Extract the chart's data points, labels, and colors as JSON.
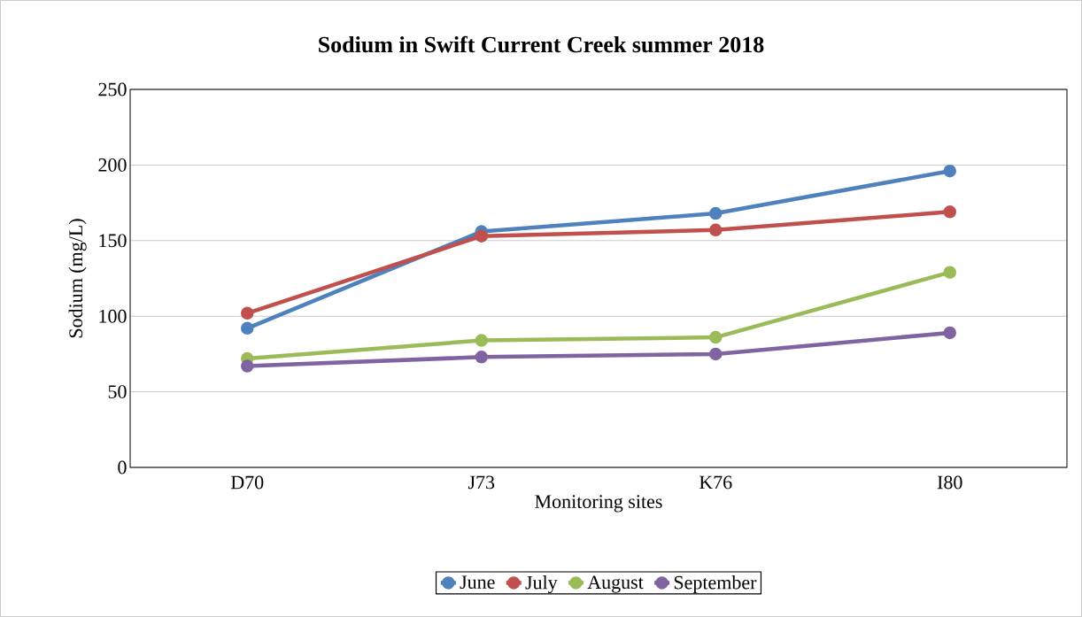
{
  "chart_data": {
    "type": "line",
    "title": "Sodium in Swift Current Creek summer 2018",
    "xlabel": "Monitoring sites",
    "ylabel": "Sodium (mg/L)",
    "categories": [
      "D70",
      "J73",
      "K76",
      "I80"
    ],
    "series": [
      {
        "name": "June",
        "color": "#4f81bd",
        "values": [
          92,
          156,
          168,
          196
        ]
      },
      {
        "name": "July",
        "color": "#c0504d",
        "values": [
          102,
          153,
          157,
          169
        ]
      },
      {
        "name": "August",
        "color": "#9bbb59",
        "values": [
          72,
          84,
          86,
          129
        ]
      },
      {
        "name": "September",
        "color": "#8064a2",
        "values": [
          67,
          73,
          75,
          89
        ]
      }
    ],
    "ylim": [
      0,
      250
    ],
    "yticks": [
      0,
      50,
      100,
      150,
      200,
      250
    ],
    "grid": "y",
    "legend": "bottom",
    "marker": "circle",
    "line_style": "solid"
  }
}
